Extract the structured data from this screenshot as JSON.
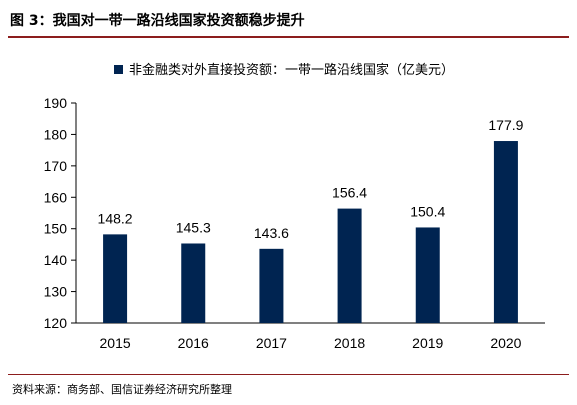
{
  "figure": {
    "title": "图 3：我国对一带一路沿线国家投资额稳步提升",
    "source": "资料来源：商务部、国信证券经济研究所整理"
  },
  "colors": {
    "bar": "#002451",
    "rule": "#8c1d1d",
    "axis": "#000000"
  },
  "chart_data": {
    "type": "bar",
    "title": "",
    "xlabel": "",
    "ylabel": "",
    "categories": [
      "2015",
      "2016",
      "2017",
      "2018",
      "2019",
      "2020"
    ],
    "series": [
      {
        "name": "非金融类对外直接投资额：一带一路沿线国家（亿美元）",
        "values": [
          148.2,
          145.3,
          143.6,
          156.4,
          150.4,
          177.9
        ]
      }
    ],
    "data_labels": [
      "148.2",
      "145.3",
      "143.6",
      "156.4",
      "150.4",
      "177.9"
    ],
    "ylim": [
      120,
      190
    ],
    "yticks": [
      "120",
      "130",
      "140",
      "150",
      "160",
      "170",
      "180",
      "190"
    ],
    "grid": false,
    "legend_position": "top-center"
  }
}
